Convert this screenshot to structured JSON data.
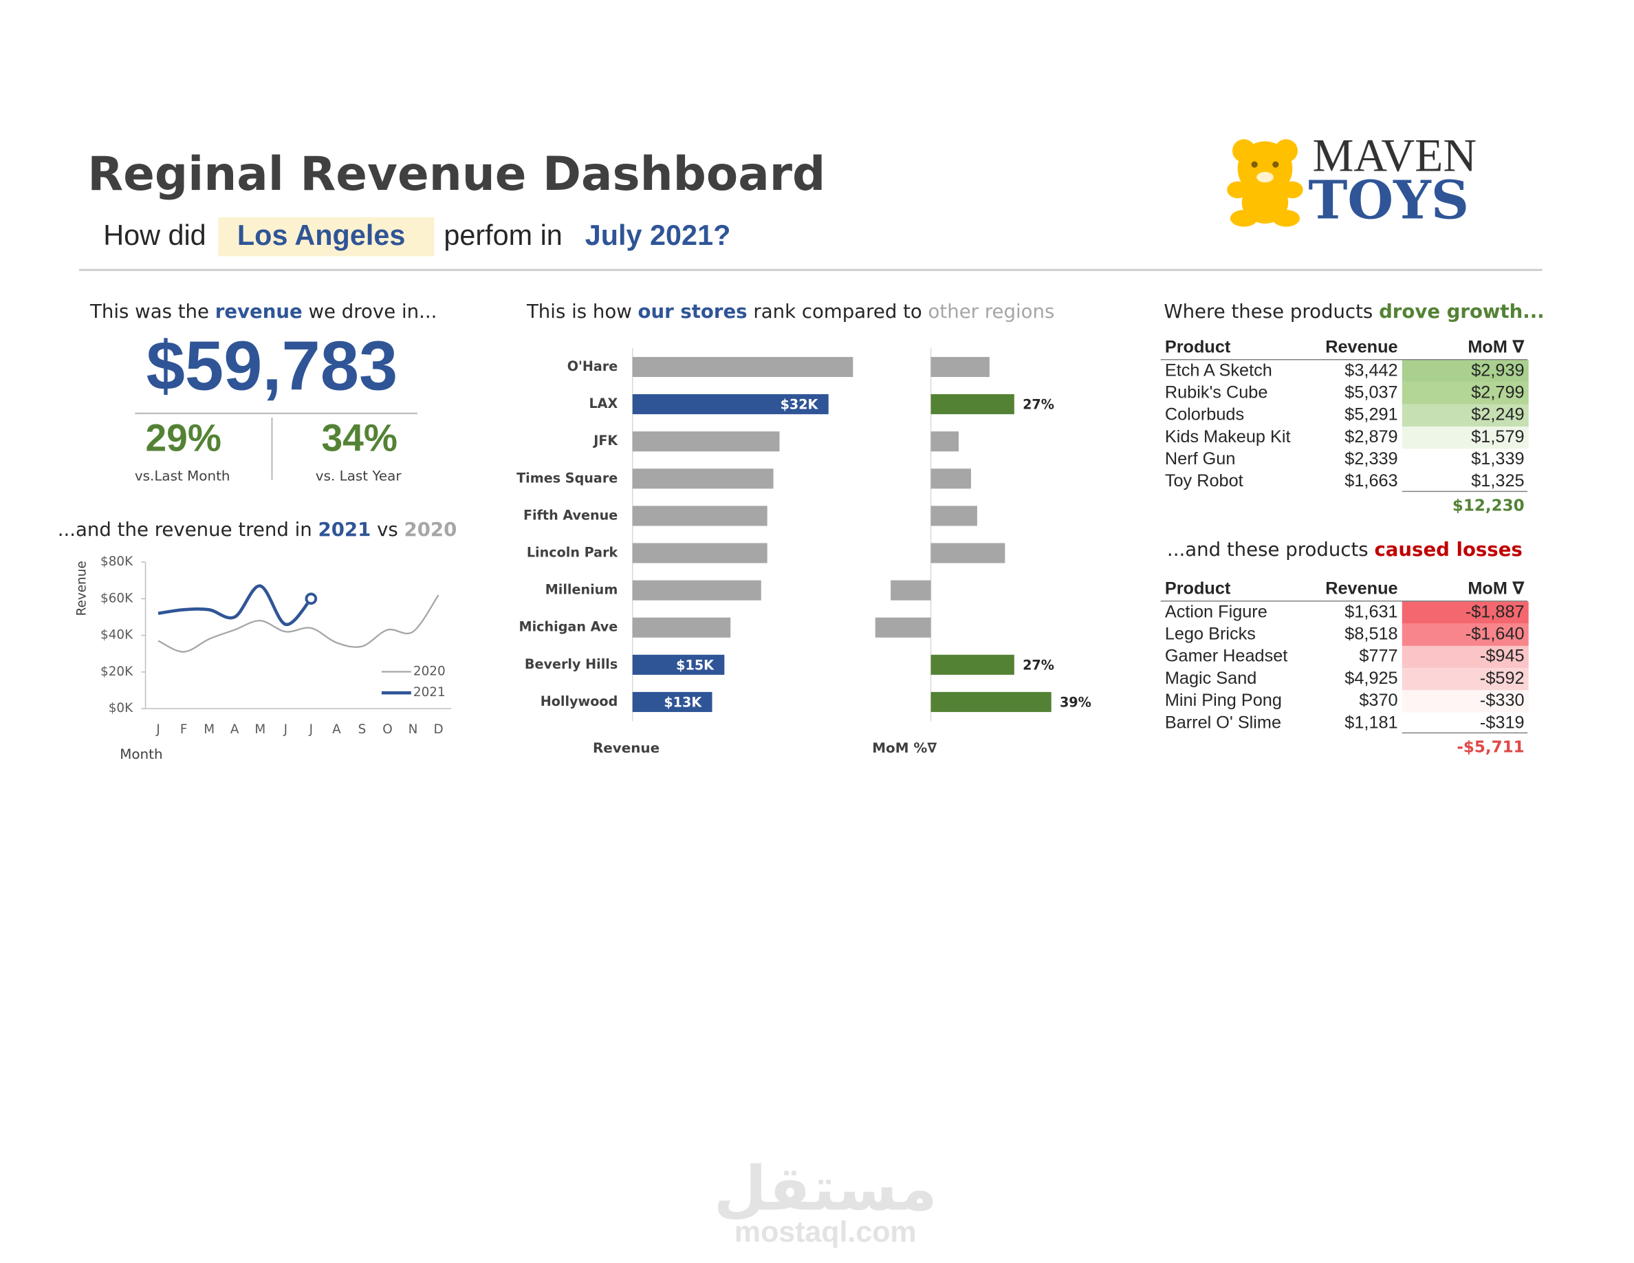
{
  "header": {
    "title": "Reginal Revenue Dashboard",
    "question": [
      "How did",
      "Los Angeles",
      "perfom in",
      "July 2021?"
    ],
    "logo": [
      "MAVEN",
      "TOYS"
    ]
  },
  "kpi": {
    "heading": [
      "This was the ",
      "revenue",
      " we drove in..."
    ],
    "value": "$59,783",
    "comparisons": [
      {
        "value": "29%",
        "label": "vs.Last Month"
      },
      {
        "value": "34%",
        "label": "vs. Last Year"
      }
    ]
  },
  "chart_data": [
    {
      "type": "line",
      "title": [
        "...and the revenue trend in ",
        "2021",
        " vs ",
        "2020"
      ],
      "y_label": "Revenue",
      "x_label": "Month",
      "categories": [
        "J",
        "F",
        "M",
        "A",
        "M",
        "J",
        "J",
        "A",
        "S",
        "O",
        "N",
        "D"
      ],
      "ylim": [
        0,
        80000
      ],
      "yticks": [
        {
          "value": 0,
          "label": "$0K"
        },
        {
          "value": 20000,
          "label": "$20K"
        },
        {
          "value": 40000,
          "label": "$40K"
        },
        {
          "value": 60000,
          "label": "$60K"
        },
        {
          "value": 80000,
          "label": "$80K"
        }
      ],
      "grid": false,
      "series": [
        {
          "name": "2020",
          "color": "#a6a6a6",
          "values": [
            37000,
            31000,
            38000,
            43000,
            48000,
            42000,
            44000,
            36000,
            34000,
            43000,
            42000,
            62000
          ]
        },
        {
          "name": "2021",
          "color": "#2f5597",
          "end_marker": true,
          "values": [
            52000,
            54000,
            54000,
            50000,
            67000,
            46000,
            60000,
            null,
            null,
            null,
            null,
            null
          ]
        }
      ]
    },
    {
      "type": "bar",
      "orientation": "horizontal",
      "title": [
        "This is how ",
        "our stores",
        " rank compared to ",
        "other regions"
      ],
      "x_label": "Revenue",
      "categories": [
        "O'Hare",
        "LAX",
        "JFK",
        "Times Square",
        "Fifth Avenue",
        "Lincoln Park",
        "Millenium",
        "Michigan Ave",
        "Beverly Hills",
        "Hollywood"
      ],
      "values": [
        36000,
        32000,
        24000,
        23000,
        22000,
        22000,
        21000,
        16000,
        15000,
        13000
      ],
      "value_labels": [
        null,
        "$32K",
        null,
        null,
        null,
        null,
        null,
        null,
        "$15K",
        "$13K"
      ],
      "label_position": "inside",
      "colors": [
        "#a6a6a6",
        "#2f5597",
        "#a6a6a6",
        "#a6a6a6",
        "#a6a6a6",
        "#a6a6a6",
        "#a6a6a6",
        "#a6a6a6",
        "#2f5597",
        "#2f5597"
      ],
      "xlim": [
        0,
        40000
      ]
    },
    {
      "type": "bar",
      "orientation": "horizontal",
      "x_label": "MoM %∇",
      "values": [
        19,
        27,
        9,
        13,
        15,
        24,
        -13,
        -18,
        27,
        39
      ],
      "value_labels": [
        null,
        "27%",
        null,
        null,
        null,
        null,
        null,
        null,
        "27%",
        "39%"
      ],
      "label_position": "outside",
      "colors": [
        "#a6a6a6",
        "#548235",
        "#a6a6a6",
        "#a6a6a6",
        "#a6a6a6",
        "#a6a6a6",
        "#a6a6a6",
        "#a6a6a6",
        "#548235",
        "#548235"
      ],
      "xlim": [
        -20,
        40
      ]
    }
  ],
  "tables": [
    {
      "heading": [
        "Where these products ",
        "drove growth..."
      ],
      "accent": "#548235",
      "columns": [
        "Product",
        "Revenue",
        "MoM ∇"
      ],
      "rows": [
        [
          "Etch A Sketch",
          "$3,442",
          "$2,939"
        ],
        [
          "Rubik's Cube",
          "$5,037",
          "$2,799"
        ],
        [
          "Colorbuds",
          "$5,291",
          "$2,249"
        ],
        [
          "Kids Makeup Kit",
          "$2,879",
          "$1,579"
        ],
        [
          "Nerf Gun",
          "$2,339",
          "$1,339"
        ],
        [
          "Toy Robot",
          "$1,663",
          "$1,325"
        ]
      ],
      "mom_colors": [
        "#a9d08e",
        "#b3d596",
        "#c6e0b4",
        "#eef6e8",
        null,
        null
      ],
      "total": "$12,230"
    },
    {
      "heading": [
        "...and these products ",
        "caused losses"
      ],
      "accent": "#c00000",
      "total_color": "#e04848",
      "columns": [
        "Product",
        "Revenue",
        "MoM ∇"
      ],
      "rows": [
        [
          "Action Figure",
          "$1,631",
          "-$1,887"
        ],
        [
          "Lego Bricks",
          "$8,518",
          "-$1,640"
        ],
        [
          "Gamer Headset",
          "$777",
          "-$945"
        ],
        [
          "Magic Sand",
          "$4,925",
          "-$592"
        ],
        [
          "Mini Ping Pong",
          "$370",
          "-$330"
        ],
        [
          "Barrel O' Slime",
          "$1,181",
          "-$319"
        ]
      ],
      "mom_colors": [
        "#f4676f",
        "#f8858b",
        "#fbc4c6",
        "#fcd6d7",
        "#fef5f5",
        null
      ],
      "total": "-$5,711"
    }
  ],
  "watermark": [
    "مستقل",
    "mostaql.com"
  ]
}
